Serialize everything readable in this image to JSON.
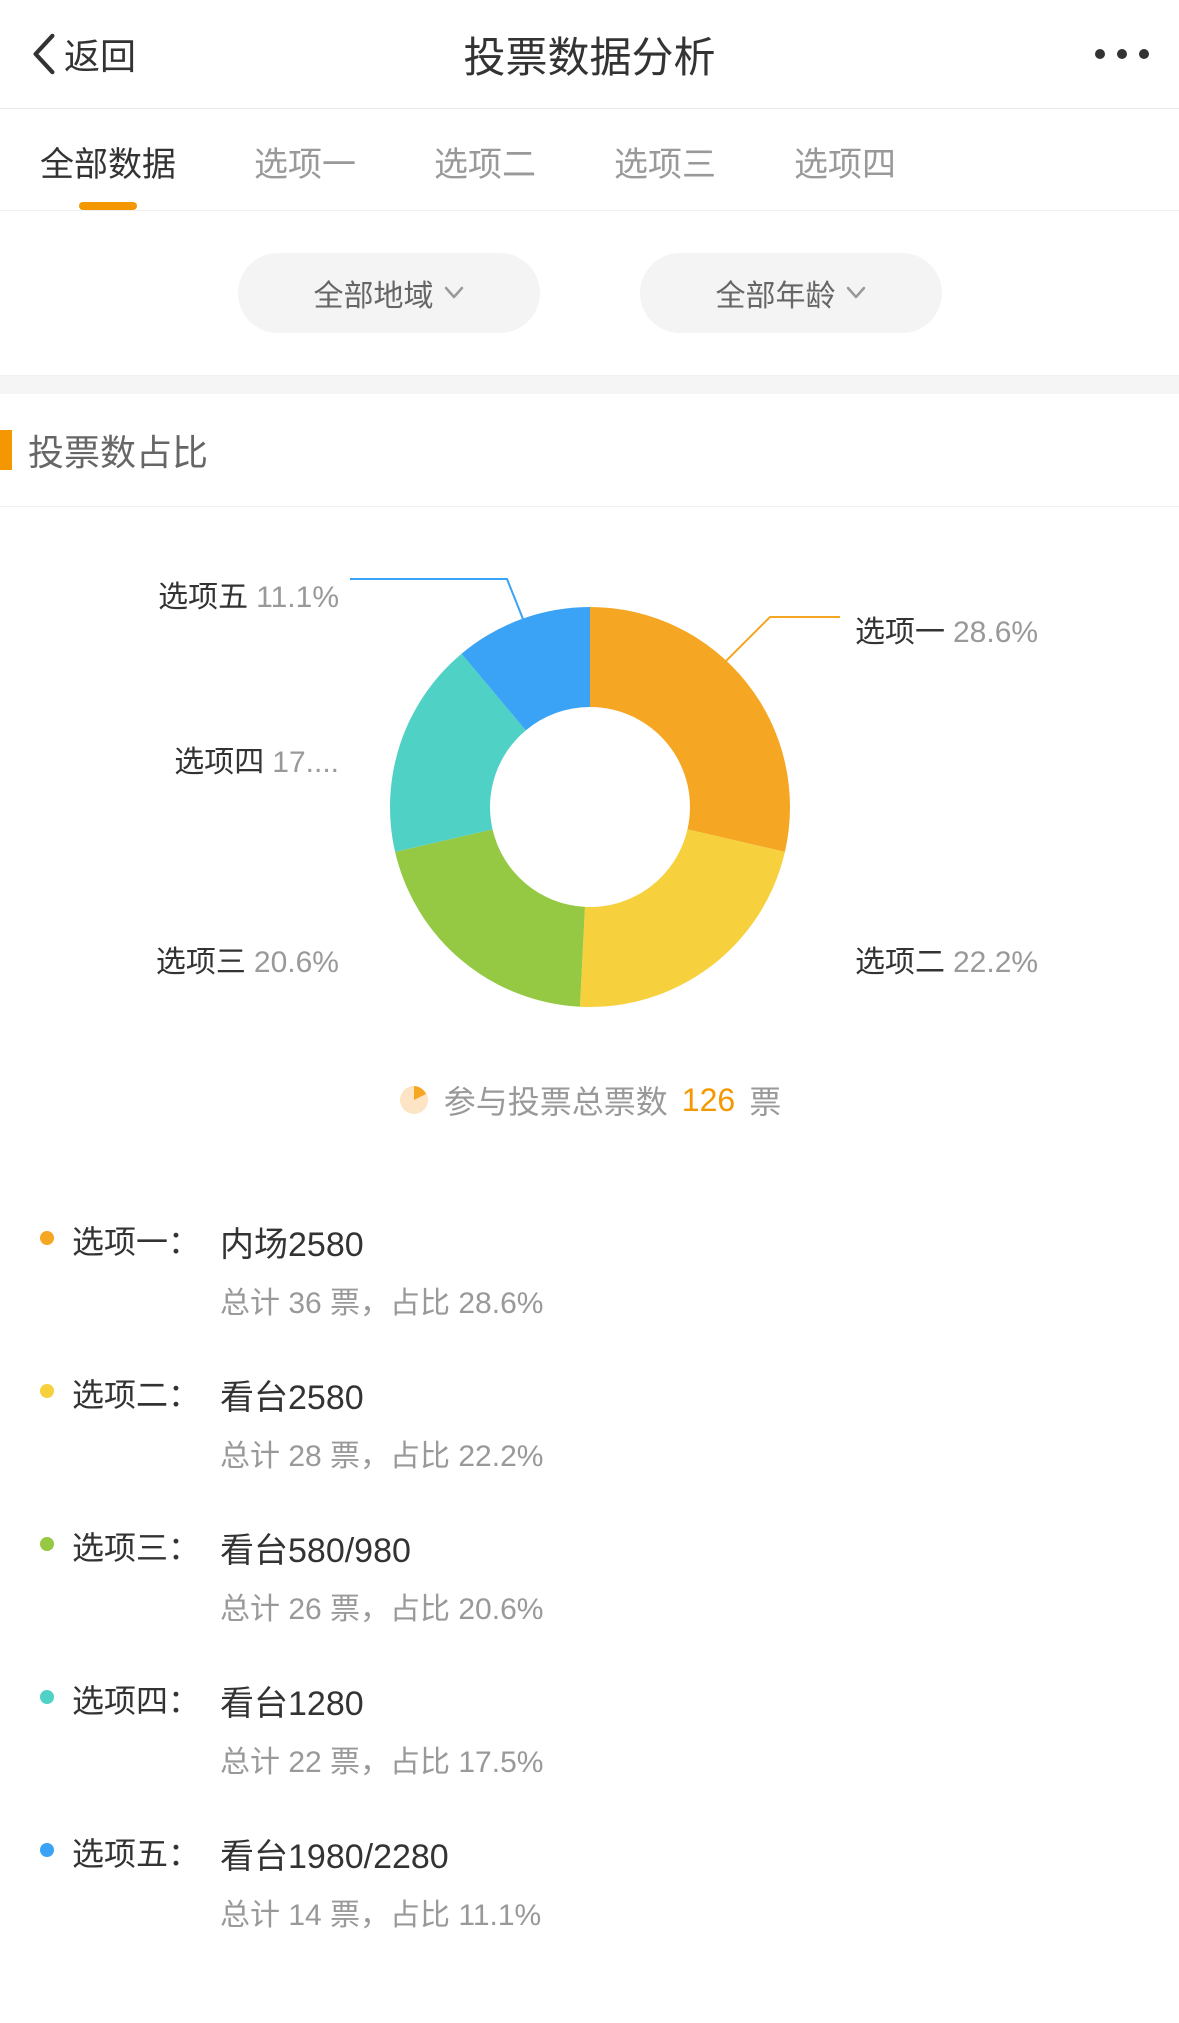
{
  "header": {
    "back_label": "返回",
    "title": "投票数据分析"
  },
  "tabs": [
    {
      "label": "全部数据",
      "active": true
    },
    {
      "label": "选项一",
      "active": false
    },
    {
      "label": "选项二",
      "active": false
    },
    {
      "label": "选项三",
      "active": false
    },
    {
      "label": "选项四",
      "active": false
    }
  ],
  "filters": {
    "region": "全部地域",
    "age": "全部年龄"
  },
  "section": {
    "title": "投票数占比",
    "marker_color": "#f39800"
  },
  "chart": {
    "type": "donut",
    "inner_radius": 100,
    "outer_radius": 200,
    "background_color": "#ffffff",
    "label_fontsize": 30,
    "label_name_color": "#333333",
    "label_pct_color": "#999999",
    "leader_line_color": "#999999",
    "slices": [
      {
        "name": "选项一",
        "pct_label": "28.6%",
        "value": 28.6,
        "color": "#f5a623"
      },
      {
        "name": "选项二",
        "pct_label": "22.2%",
        "value": 22.2,
        "color": "#f7d13d"
      },
      {
        "name": "选项三",
        "pct_label": "20.6%",
        "value": 20.6,
        "color": "#95c944"
      },
      {
        "name": "选项四",
        "pct_label": "17....",
        "value": 17.5,
        "color": "#4fd1c5"
      },
      {
        "name": "选项五",
        "pct_label": "11.1%",
        "value": 11.1,
        "color": "#3ba3f5"
      }
    ]
  },
  "total": {
    "label": "参与投票总票数",
    "count": "126",
    "unit": "票",
    "icon_color": "#f5b373"
  },
  "results": [
    {
      "label": "选项一：",
      "name": "内场2580",
      "stats": "总计 36 票，占比 28.6%",
      "dot_color": "#f5a623"
    },
    {
      "label": "选项二：",
      "name": "看台2580",
      "stats": "总计 28 票，占比 22.2%",
      "dot_color": "#f7d13d"
    },
    {
      "label": "选项三：",
      "name": "看台580/980",
      "stats": "总计 26 票，占比 20.6%",
      "dot_color": "#95c944"
    },
    {
      "label": "选项四：",
      "name": "看台1280",
      "stats": "总计 22 票，占比 17.5%",
      "dot_color": "#4fd1c5"
    },
    {
      "label": "选项五：",
      "name": "看台1980/2280",
      "stats": "总计 14 票，占比 11.1%",
      "dot_color": "#3ba3f5"
    }
  ]
}
